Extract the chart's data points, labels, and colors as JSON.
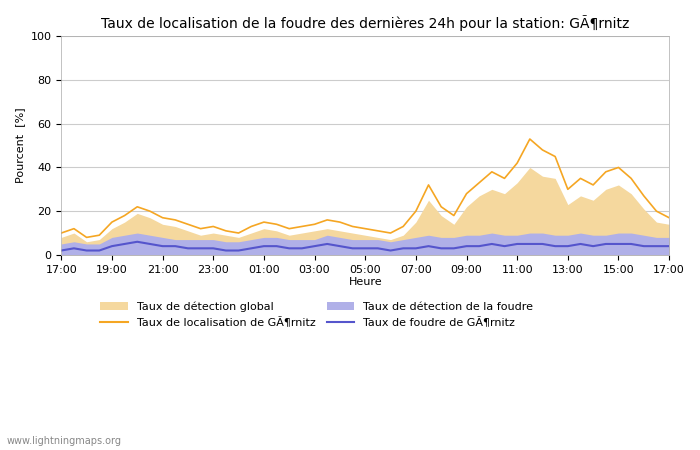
{
  "title": "Taux de localisation de la foudre des dernières 24h pour la station: GÃ¶rnitz",
  "ylabel": "Pourcent  [%]",
  "xlabel": "Heure",
  "xlim": [
    0,
    48
  ],
  "ylim": [
    0,
    100
  ],
  "yticks": [
    0,
    20,
    40,
    60,
    80,
    100
  ],
  "xtick_labels": [
    "17:00",
    "19:00",
    "21:00",
    "23:00",
    "01:00",
    "03:00",
    "05:00",
    "07:00",
    "09:00",
    "11:00",
    "13:00",
    "15:00",
    "17:00"
  ],
  "xtick_positions": [
    0,
    4,
    8,
    12,
    16,
    20,
    24,
    28,
    32,
    36,
    40,
    44,
    48
  ],
  "watermark": "www.lightningmaps.org",
  "background_color": "#ffffff",
  "plot_bg_color": "#ffffff",
  "grid_color": "#cccccc",
  "color_orange_line": "#f5a623",
  "color_orange_fill": "#f5d89e",
  "color_blue_line": "#5555cc",
  "color_blue_fill": "#b0b0e8",
  "legend_labels": [
    "Taux de détection global",
    "Taux de localisation de GÃ¶rnitz",
    "Taux de détection de la foudre",
    "Taux de foudre de GÃ¶rnitz"
  ],
  "orange_line": [
    10,
    12,
    8,
    9,
    15,
    18,
    22,
    20,
    17,
    16,
    14,
    12,
    13,
    11,
    10,
    13,
    15,
    14,
    12,
    13,
    14,
    16,
    15,
    13,
    12,
    11,
    10,
    13,
    20,
    32,
    22,
    18,
    28,
    33,
    38,
    35,
    42,
    53,
    48,
    45,
    30,
    35,
    32,
    38,
    40,
    35,
    27,
    20,
    17
  ],
  "orange_fill_top": [
    8,
    10,
    6,
    7,
    12,
    15,
    19,
    17,
    14,
    13,
    11,
    9,
    10,
    9,
    8,
    10,
    12,
    11,
    9,
    10,
    11,
    12,
    11,
    10,
    9,
    8,
    7,
    9,
    15,
    25,
    18,
    14,
    22,
    27,
    30,
    28,
    33,
    40,
    36,
    35,
    23,
    27,
    25,
    30,
    32,
    28,
    21,
    15,
    14
  ],
  "blue_line": [
    2,
    3,
    2,
    2,
    4,
    5,
    6,
    5,
    4,
    4,
    3,
    3,
    3,
    2,
    2,
    3,
    4,
    4,
    3,
    3,
    4,
    5,
    4,
    3,
    3,
    3,
    2,
    3,
    3,
    4,
    3,
    3,
    4,
    4,
    5,
    4,
    5,
    5,
    5,
    4,
    4,
    5,
    4,
    5,
    5,
    5,
    4,
    4,
    4
  ],
  "blue_fill_top": [
    5,
    6,
    5,
    5,
    8,
    9,
    10,
    9,
    8,
    7,
    7,
    7,
    7,
    6,
    6,
    7,
    8,
    8,
    7,
    7,
    7,
    9,
    8,
    7,
    7,
    7,
    6,
    7,
    8,
    9,
    8,
    8,
    9,
    9,
    10,
    9,
    9,
    10,
    10,
    9,
    9,
    10,
    9,
    9,
    10,
    10,
    9,
    8,
    8
  ]
}
